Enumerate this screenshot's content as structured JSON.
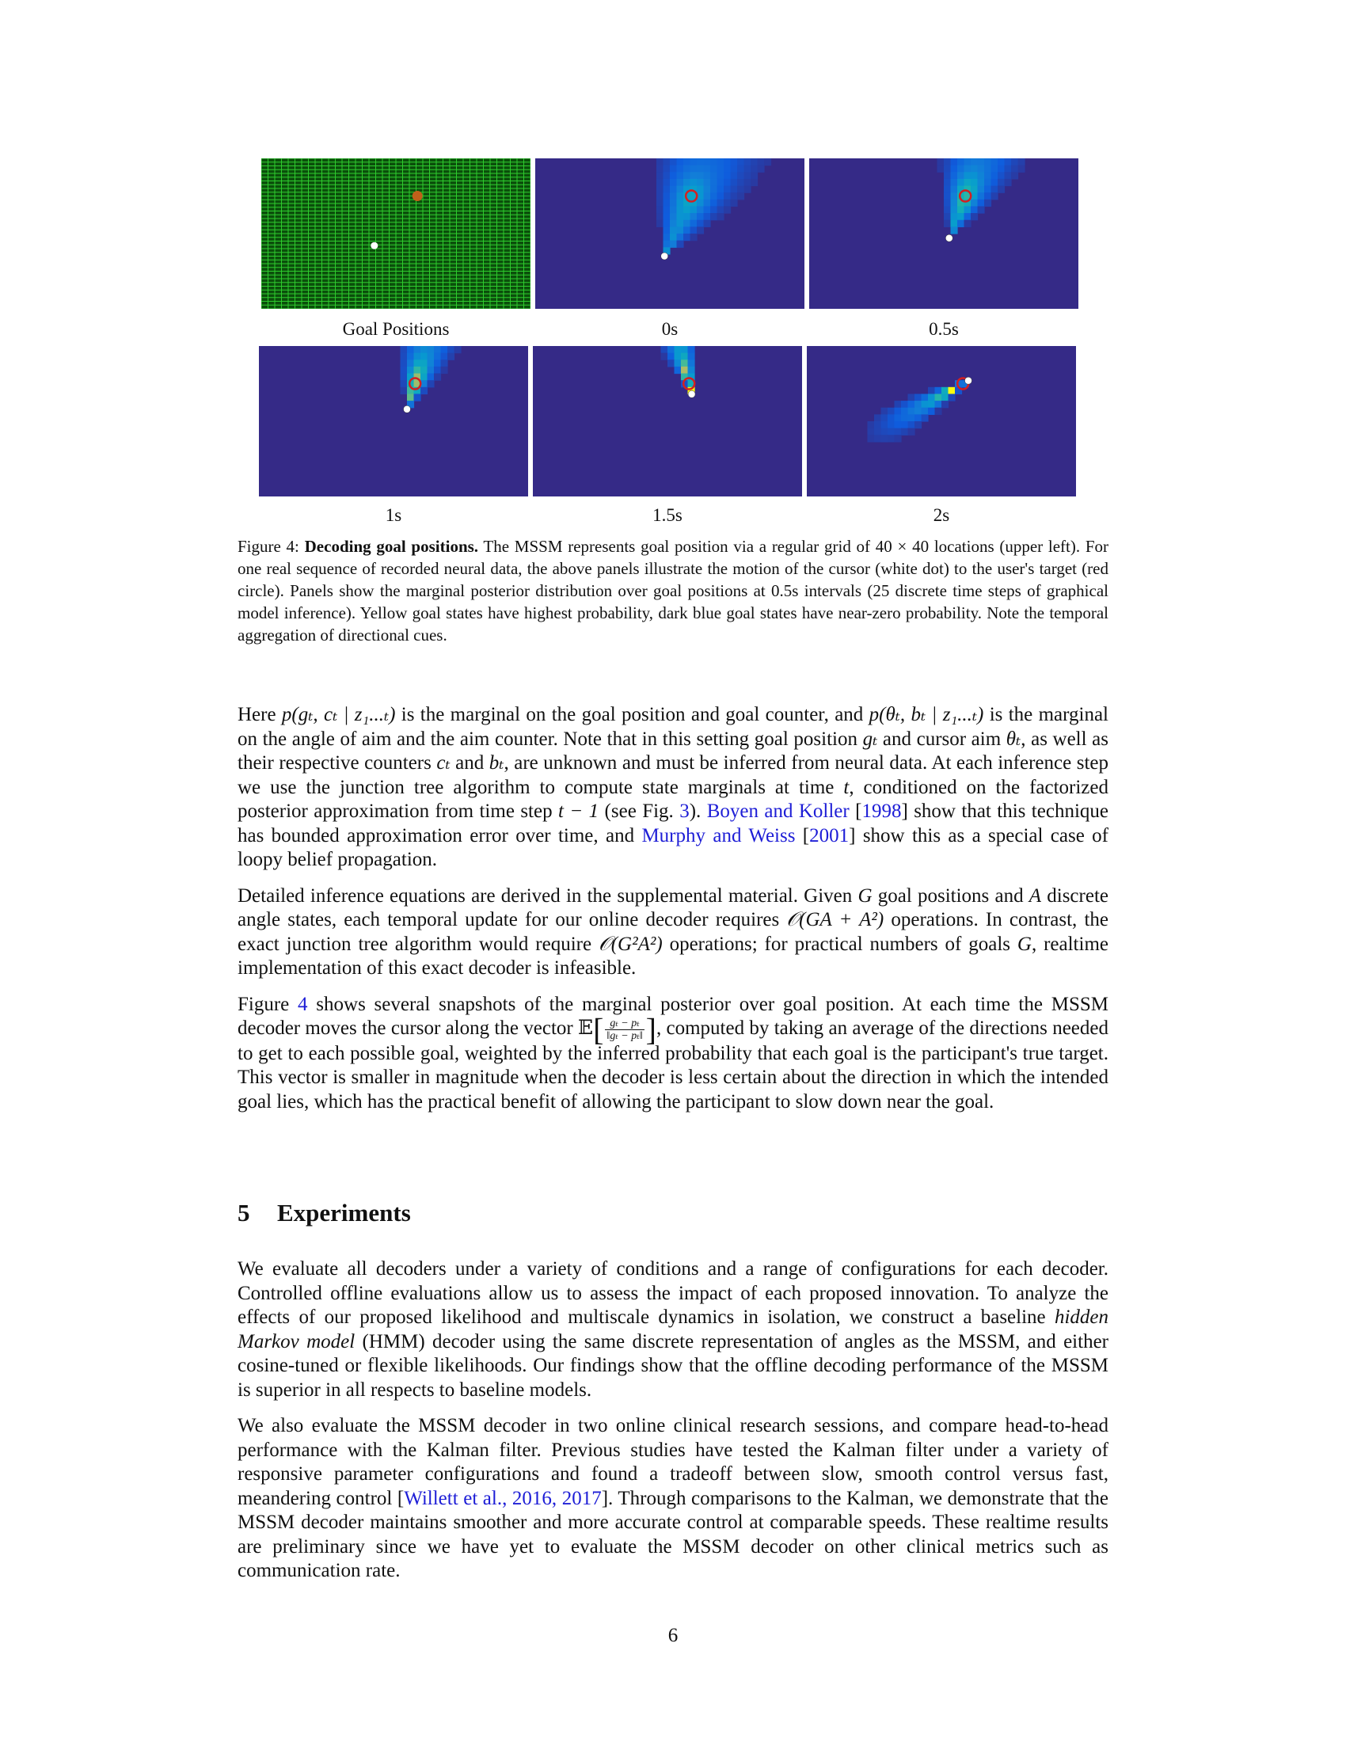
{
  "figure": {
    "panels": [
      {
        "label": "Goal Positions",
        "type": "grid",
        "goal": [
          0.58,
          0.25
        ],
        "cursor": [
          0.42,
          0.58
        ]
      },
      {
        "label": "0s",
        "type": "heat",
        "goal": [
          0.58,
          0.25
        ],
        "cursor": [
          0.48,
          0.65
        ],
        "spread": 0.28,
        "peak": 0.35,
        "reach": 0.75
      },
      {
        "label": "0.5s",
        "type": "heat",
        "goal": [
          0.58,
          0.25
        ],
        "cursor": [
          0.52,
          0.53
        ],
        "spread": 0.25,
        "peak": 0.45,
        "reach": 0.7
      },
      {
        "label": "1s",
        "type": "heat",
        "goal": [
          0.58,
          0.25
        ],
        "cursor": [
          0.55,
          0.42
        ],
        "spread": 0.22,
        "peak": 0.6,
        "reach": 0.6
      },
      {
        "label": "1.5s",
        "type": "heat",
        "goal": [
          0.58,
          0.25
        ],
        "cursor": [
          0.59,
          0.32
        ],
        "spread": 0.18,
        "peak": 0.78,
        "reach": 0.5
      },
      {
        "label": "2s",
        "type": "heat",
        "goal": [
          0.58,
          0.25
        ],
        "cursor": [
          0.6,
          0.23
        ],
        "spread": 0.13,
        "peak": 1.0,
        "reach": 0.4
      }
    ],
    "colors": {
      "background": "#352a87",
      "grid_bg": "#0b4f0b",
      "grid_line": "#2ecc2e",
      "goal": "#d42020",
      "cursor": "#ffffff"
    },
    "caption_label": "Figure 4:",
    "caption_title": "Decoding goal positions.",
    "caption_text": "The MSSM represents goal position via a regular grid of 40 × 40 locations (upper left). For one real sequence of recorded neural data, the above panels illustrate the motion of the cursor (white dot) to the user's target (red circle). Panels show the marginal posterior distribution over goal positions at 0.5s intervals (25 discrete time steps of graphical model inference). Yellow goal states have highest probability, dark blue goal states have near-zero probability. Note the temporal aggregation of directional cues."
  },
  "para1": {
    "s1": "Here ",
    "m1": "p(gₜ, cₜ | z₁...ₜ)",
    "s2": " is the marginal on the goal position and goal counter, and ",
    "m2": "p(θₜ, bₜ | z₁...ₜ)",
    "s3": " is the marginal on the angle of aim and the aim counter. Note that in this setting goal position ",
    "m3": "gₜ",
    "s4": " and cursor aim ",
    "m4": "θₜ",
    "s5": ", as well as their respective counters ",
    "m5": "cₜ",
    "s6": " and ",
    "m6": "bₜ",
    "s7": ", are unknown and must be inferred from neural data. At each inference step we use the junction tree algorithm to compute state marginals at time ",
    "m7": "t",
    "s8": ", conditioned on the factorized posterior approximation from time step ",
    "m8": "t − 1",
    "s9": " (see Fig. ",
    "fig_ref": "3",
    "s10": "). ",
    "cite1a": "Boyen and Koller",
    "s11": " [",
    "cite1b": "1998",
    "s12": "] show that this technique has bounded approximation error over time, and ",
    "cite2a": "Murphy and Weiss",
    "s13": " [",
    "cite2b": "2001",
    "s14": "] show this as a special case of loopy belief propagation."
  },
  "para2": {
    "s1": "Detailed inference equations are derived in the supplemental material. Given ",
    "m1": "G",
    "s2": " goal positions and ",
    "m2": "A",
    "s3": " discrete angle states, each temporal update for our online decoder requires ",
    "m3": "𝒪(GA + A²)",
    "s4": " operations. In contrast, the exact junction tree algorithm would require ",
    "m4": "𝒪(G²A²)",
    "s5": " operations; for practical numbers of goals ",
    "m5": "G",
    "s6": ", realtime implementation of this exact decoder is infeasible."
  },
  "para3": {
    "s1": "Figure ",
    "fig_ref": "4",
    "s2": " shows several snapshots of the marginal posterior over goal position. At each time the MSSM decoder moves the cursor along the vector ",
    "expect": "𝔼",
    "frac_top": "gₜ − pₜ",
    "frac_bot": "‖gₜ − pₜ‖",
    "s3": ", computed by taking an average of the directions needed to get to each possible goal, weighted by the inferred probability that each goal is the participant's true target. This vector is smaller in magnitude when the decoder is less certain about the direction in which the intended goal lies, which has the practical benefit of allowing the participant to slow down near the goal."
  },
  "section": {
    "number": "5",
    "title": "Experiments"
  },
  "para4": {
    "s1": "We evaluate all decoders under a variety of conditions and a range of configurations for each decoder. Controlled offline evaluations allow us to assess the impact of each proposed innovation. To analyze the effects of our proposed likelihood and multiscale dynamics in isolation, we construct a baseline ",
    "em": "hidden Markov model",
    "s2": " (HMM) decoder using the same discrete representation of angles as the MSSM, and either cosine-tuned or flexible likelihoods. Our findings show that the offline decoding performance of the MSSM is superior in all respects to baseline models."
  },
  "para5": {
    "s1": "We also evaluate the MSSM decoder in two online clinical research sessions, and compare head-to-head performance with the Kalman filter. Previous studies have tested the Kalman filter under a variety of responsive parameter configurations and found a tradeoff between slow, smooth control versus fast, meandering control [",
    "cite": "Willett et al., 2016, 2017",
    "s2": "]. Through comparisons to the Kalman, we demonstrate that the MSSM decoder maintains smoother and more accurate control at comparable speeds. These realtime results are preliminary since we have yet to evaluate the MSSM decoder on other clinical metrics such as communication rate."
  },
  "page_number": "6"
}
